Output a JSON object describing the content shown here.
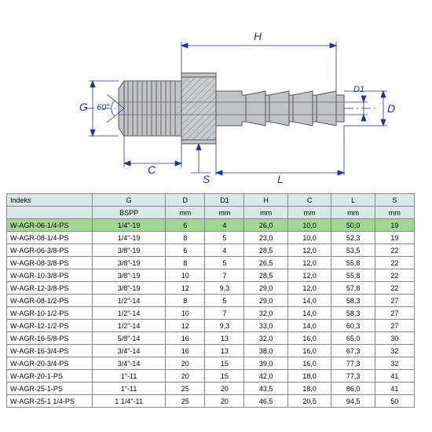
{
  "diagram": {
    "labels": {
      "G": "G",
      "H": "H",
      "D": "D",
      "D1": "D1",
      "C": "C",
      "S": "S",
      "L": "L",
      "angle": "60°"
    },
    "colors": {
      "dim": "#2030a0",
      "part_fill": "#c0c4c8",
      "part_stroke": "#555"
    }
  },
  "table": {
    "columns": [
      "Indeks",
      "G",
      "D",
      "D1",
      "H",
      "C",
      "L",
      "S"
    ],
    "units": [
      "",
      "BSPP",
      "mm",
      "mm",
      "mm",
      "mm",
      "mm",
      "mm"
    ],
    "highlight_row": 0,
    "rows": [
      [
        "W-AGR-06-1/4-PS",
        "1/4\"-19",
        "6",
        "4",
        "26,0",
        "10,0",
        "50,0",
        "19"
      ],
      [
        "W-AGR-08-1/4-PS",
        "1/4\"-19",
        "8",
        "5",
        "23,0",
        "10,0",
        "52,3",
        "19"
      ],
      [
        "W-AGR-06-3/8-PS",
        "3/8\"-19",
        "6",
        "4",
        "28,5",
        "12,0",
        "53,5",
        "22"
      ],
      [
        "W-AGR-08-3/8-PS",
        "3/8\"-19",
        "8",
        "5",
        "26,5",
        "12,0",
        "55,8",
        "22"
      ],
      [
        "W-AGR-10-3/8-PS",
        "3/8\"-19",
        "10",
        "7",
        "28,5",
        "12,0",
        "55,8",
        "22"
      ],
      [
        "W-AGR-12-3/8-PS",
        "3/8\"-19",
        "12",
        "9,3",
        "29,0",
        "12,0",
        "57,8",
        "22"
      ],
      [
        "W-AGR-08-1/2-PS",
        "1/2\"-14",
        "8",
        "5",
        "29,0",
        "14,0",
        "58,3",
        "27"
      ],
      [
        "W-AGR-10-1/2-PS",
        "1/2\"-14",
        "10",
        "7",
        "32,0",
        "14,0",
        "58,3",
        "27"
      ],
      [
        "W-AGR-12-1/2-PS",
        "1/2\"-14",
        "12",
        "9,3",
        "33,0",
        "14,0",
        "60,3",
        "27"
      ],
      [
        "W-AGR-16-5/8-PS",
        "5/8\"-14",
        "16",
        "13",
        "32,0",
        "16,0",
        "65,0",
        "30"
      ],
      [
        "W-AGR-16-3/4-PS",
        "3/4\"-14",
        "16",
        "13",
        "38,0",
        "16,0",
        "67,3",
        "32"
      ],
      [
        "W-AGR-20-3/4-PS",
        "3/4\"-14",
        "20",
        "15",
        "39,0",
        "16,0",
        "77,3",
        "32"
      ],
      [
        "W-AGR-20-1-PS",
        "1\"-11",
        "20",
        "15",
        "42,0",
        "18,0",
        "77,3",
        "41"
      ],
      [
        "W-AGR-25-1-PS",
        "1\"-11",
        "25",
        "20",
        "43,5",
        "18,0",
        "86,0",
        "41"
      ],
      [
        "W-AGR-25-1 1/4-PS",
        "1 1/4\"-11",
        "25",
        "20",
        "46,5",
        "20,5",
        "94,5",
        "50"
      ]
    ]
  }
}
